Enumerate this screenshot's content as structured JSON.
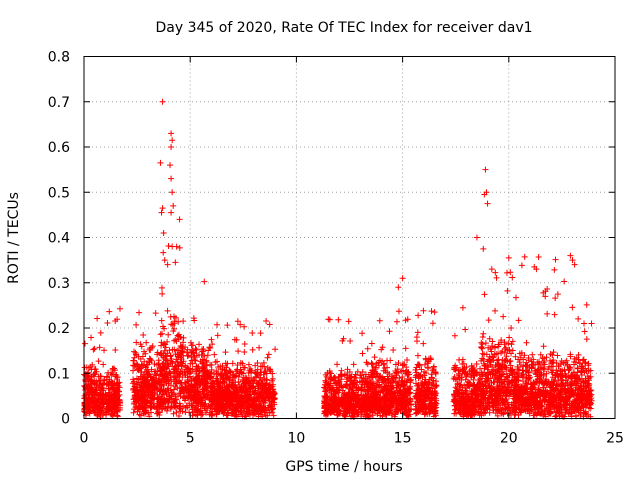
{
  "chart_data": {
    "type": "scatter",
    "title": "Day 345 of 2020, Rate Of TEC Index for receiver dav1",
    "xlabel": "GPS time / hours",
    "ylabel": "ROTI / TECUs",
    "xlim": [
      0,
      25
    ],
    "ylim": [
      0,
      0.8
    ],
    "xticks": [
      0,
      5,
      10,
      15,
      20,
      25
    ],
    "yticks": [
      0,
      0.1,
      0.2,
      0.3,
      0.4,
      0.5,
      0.6,
      0.7,
      0.8
    ],
    "grid": true,
    "marker": "+",
    "color": "#ff0000",
    "series": [
      {
        "name": "ROTI",
        "segments": [
          {
            "start": 0.0,
            "end": 1.7,
            "base": 0.04,
            "spread": 0.08,
            "max": 0.26
          },
          {
            "start": 2.3,
            "end": 3.6,
            "base": 0.07,
            "spread": 0.1,
            "max": 0.27
          },
          {
            "start": 3.6,
            "end": 4.6,
            "base": 0.1,
            "spread": 0.14,
            "max": 0.4
          },
          {
            "start": 4.6,
            "end": 6.0,
            "base": 0.08,
            "spread": 0.1,
            "max": 0.31
          },
          {
            "start": 6.0,
            "end": 9.0,
            "base": 0.05,
            "spread": 0.08,
            "max": 0.22
          },
          {
            "start": 11.3,
            "end": 13.5,
            "base": 0.03,
            "spread": 0.08,
            "max": 0.22
          },
          {
            "start": 13.5,
            "end": 15.4,
            "base": 0.04,
            "spread": 0.09,
            "max": 0.26
          },
          {
            "start": 15.6,
            "end": 16.6,
            "base": 0.05,
            "spread": 0.09,
            "max": 0.25
          },
          {
            "start": 17.4,
            "end": 18.7,
            "base": 0.04,
            "spread": 0.09,
            "max": 0.29
          },
          {
            "start": 18.7,
            "end": 20.3,
            "base": 0.07,
            "spread": 0.12,
            "max": 0.33
          },
          {
            "start": 20.3,
            "end": 23.9,
            "base": 0.05,
            "spread": 0.1,
            "max": 0.36
          }
        ],
        "peaks": [
          [
            3.7,
            0.7
          ],
          [
            3.6,
            0.565
          ],
          [
            3.7,
            0.465
          ],
          [
            3.65,
            0.455
          ],
          [
            3.75,
            0.41
          ],
          [
            4.1,
            0.63
          ],
          [
            4.15,
            0.615
          ],
          [
            4.1,
            0.6
          ],
          [
            4.05,
            0.56
          ],
          [
            4.1,
            0.53
          ],
          [
            4.15,
            0.5
          ],
          [
            4.2,
            0.47
          ],
          [
            4.1,
            0.455
          ],
          [
            4.5,
            0.44
          ],
          [
            4.15,
            0.38
          ],
          [
            4.3,
            0.345
          ],
          [
            3.8,
            0.35
          ],
          [
            18.9,
            0.55
          ],
          [
            18.95,
            0.5
          ],
          [
            18.85,
            0.495
          ],
          [
            19.0,
            0.475
          ],
          [
            18.5,
            0.4
          ],
          [
            18.8,
            0.375
          ],
          [
            19.2,
            0.33
          ],
          [
            22.9,
            0.36
          ],
          [
            23.0,
            0.35
          ],
          [
            23.1,
            0.34
          ],
          [
            15.0,
            0.31
          ],
          [
            14.8,
            0.29
          ],
          [
            20.0,
            0.355
          ],
          [
            21.3,
            0.33
          ]
        ]
      }
    ]
  }
}
